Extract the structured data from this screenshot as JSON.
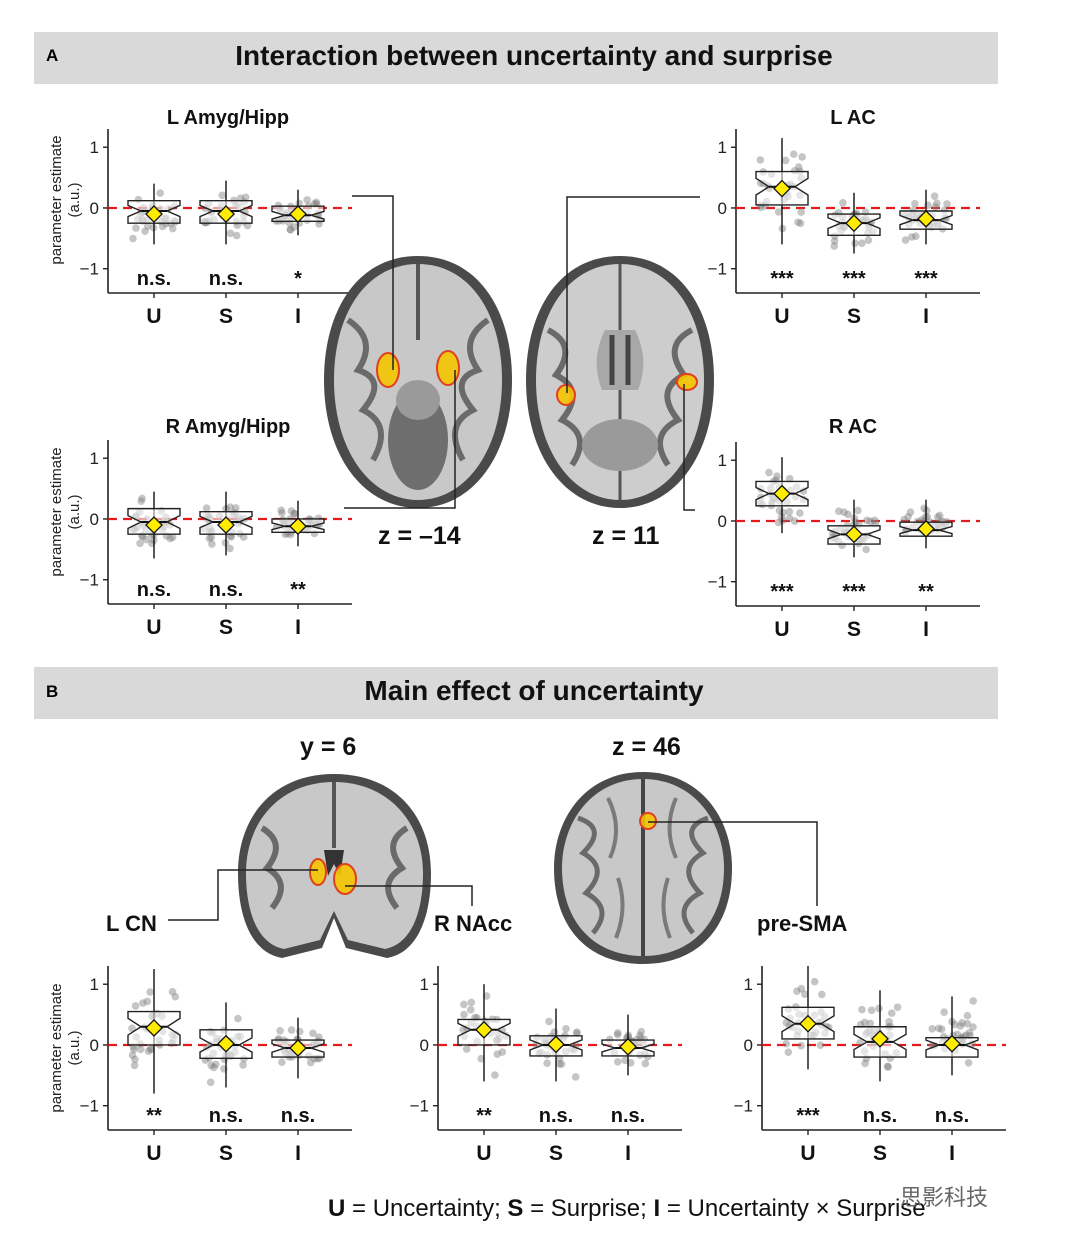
{
  "panel_a": {
    "letter": "A",
    "title": "Interaction between uncertainty and surprise"
  },
  "panel_b": {
    "letter": "B",
    "title": "Main effect of uncertainty"
  },
  "y_axis_label_line1": "parameter estimate",
  "y_axis_label_line2": "(a.u.)",
  "slices": {
    "a_left": "z = –14",
    "a_right": "z = 11",
    "b_left": "y = 6",
    "b_right": "z = 46"
  },
  "region_labels": {
    "l_cn": "L CN",
    "r_nacc": "R NAcc",
    "pre_sma": "pre-SMA"
  },
  "footer": {
    "u": "U",
    "u_text": " = Uncertainty; ",
    "s": "S",
    "s_text": " = Surprise; ",
    "i": "I",
    "i_text": " = Uncertainty × Surprise"
  },
  "watermark": "思影科技",
  "colors": {
    "zero_line": "#e41a1c",
    "mean_marker": "#ffec00",
    "points": "#7f7f7f",
    "activation": "#f5c400",
    "header_bg": "#d9d9d9"
  },
  "chart_data": [
    {
      "type": "box",
      "title": "L Amyg/Hipp",
      "categories": [
        "U",
        "S",
        "I"
      ],
      "ylim": [
        -1.4,
        1.3
      ],
      "yticks": [
        -1,
        0,
        1
      ],
      "ylabel": "parameter estimate (a.u.)",
      "median": [
        -0.05,
        -0.05,
        -0.12
      ],
      "q1": [
        -0.25,
        -0.25,
        -0.22
      ],
      "q3": [
        0.12,
        0.12,
        0.03
      ],
      "whisker_low": [
        -0.6,
        -0.6,
        -0.45
      ],
      "whisker_high": [
        0.4,
        0.45,
        0.3
      ],
      "mean": [
        -0.1,
        -0.1,
        -0.1
      ],
      "significance": [
        "n.s.",
        "n.s.",
        "*"
      ]
    },
    {
      "type": "box",
      "title": "R Amyg/Hipp",
      "categories": [
        "U",
        "S",
        "I"
      ],
      "ylim": [
        -1.4,
        1.3
      ],
      "yticks": [
        -1,
        0,
        1
      ],
      "ylabel": "parameter estimate (a.u.)",
      "median": [
        -0.05,
        -0.05,
        -0.12
      ],
      "q1": [
        -0.25,
        -0.25,
        -0.22
      ],
      "q3": [
        0.17,
        0.12,
        0.0
      ],
      "whisker_low": [
        -0.65,
        -0.6,
        -0.45
      ],
      "whisker_high": [
        0.45,
        0.45,
        0.3
      ],
      "mean": [
        -0.1,
        -0.1,
        -0.12
      ],
      "significance": [
        "n.s.",
        "n.s.",
        "**"
      ]
    },
    {
      "type": "box",
      "title": "L AC",
      "categories": [
        "U",
        "S",
        "I"
      ],
      "ylim": [
        -1.4,
        1.3
      ],
      "yticks": [
        -1,
        0,
        1
      ],
      "ylabel": "",
      "median": [
        0.35,
        -0.25,
        -0.2
      ],
      "q1": [
        0.05,
        -0.45,
        -0.35
      ],
      "q3": [
        0.6,
        -0.1,
        -0.05
      ],
      "whisker_low": [
        -0.6,
        -0.75,
        -0.6
      ],
      "whisker_high": [
        1.15,
        0.25,
        0.3
      ],
      "mean": [
        0.32,
        -0.25,
        -0.18
      ],
      "significance": [
        "***",
        "***",
        "***"
      ]
    },
    {
      "type": "box",
      "title": "R AC",
      "categories": [
        "U",
        "S",
        "I"
      ],
      "ylim": [
        -1.4,
        1.3
      ],
      "yticks": [
        -1,
        0,
        1
      ],
      "ylabel": "",
      "median": [
        0.45,
        -0.22,
        -0.15
      ],
      "q1": [
        0.25,
        -0.38,
        -0.25
      ],
      "q3": [
        0.65,
        -0.08,
        -0.02
      ],
      "whisker_low": [
        -0.2,
        -0.6,
        -0.45
      ],
      "whisker_high": [
        1.05,
        0.35,
        0.35
      ],
      "mean": [
        0.45,
        -0.22,
        -0.13
      ],
      "significance": [
        "***",
        "***",
        "**"
      ]
    },
    {
      "type": "box",
      "title": "L CN",
      "categories": [
        "U",
        "S",
        "I"
      ],
      "ylim": [
        -1.4,
        1.3
      ],
      "yticks": [
        -1,
        0,
        1
      ],
      "ylabel": "parameter estimate (a.u.)",
      "median": [
        0.3,
        0.0,
        -0.05
      ],
      "q1": [
        0.0,
        -0.22,
        -0.2
      ],
      "q3": [
        0.55,
        0.25,
        0.08
      ],
      "whisker_low": [
        -0.8,
        -0.7,
        -0.55
      ],
      "whisker_high": [
        1.25,
        0.7,
        0.45
      ],
      "mean": [
        0.28,
        0.02,
        -0.05
      ],
      "significance": [
        "**",
        "n.s.",
        "n.s."
      ]
    },
    {
      "type": "box",
      "title": "R NAcc",
      "categories": [
        "U",
        "S",
        "I"
      ],
      "ylim": [
        -1.4,
        1.3
      ],
      "yticks": [
        -1,
        0,
        1
      ],
      "ylabel": "",
      "median": [
        0.25,
        0.0,
        -0.05
      ],
      "q1": [
        0.0,
        -0.18,
        -0.18
      ],
      "q3": [
        0.42,
        0.15,
        0.08
      ],
      "whisker_low": [
        -0.6,
        -0.6,
        -0.5
      ],
      "whisker_high": [
        1.0,
        0.6,
        0.5
      ],
      "mean": [
        0.25,
        0.01,
        -0.03
      ],
      "significance": [
        "**",
        "n.s.",
        "n.s."
      ]
    },
    {
      "type": "box",
      "title": "pre-SMA",
      "categories": [
        "U",
        "S",
        "I"
      ],
      "ylim": [
        -1.4,
        1.3
      ],
      "yticks": [
        -1,
        0,
        1
      ],
      "ylabel": "",
      "median": [
        0.35,
        0.05,
        0.0
      ],
      "q1": [
        0.1,
        -0.2,
        -0.2
      ],
      "q3": [
        0.62,
        0.3,
        0.12
      ],
      "whisker_low": [
        -0.4,
        -0.6,
        -0.5
      ],
      "whisker_high": [
        1.3,
        0.9,
        0.8
      ],
      "mean": [
        0.35,
        0.1,
        0.02
      ],
      "significance": [
        "***",
        "n.s.",
        "n.s."
      ]
    }
  ]
}
